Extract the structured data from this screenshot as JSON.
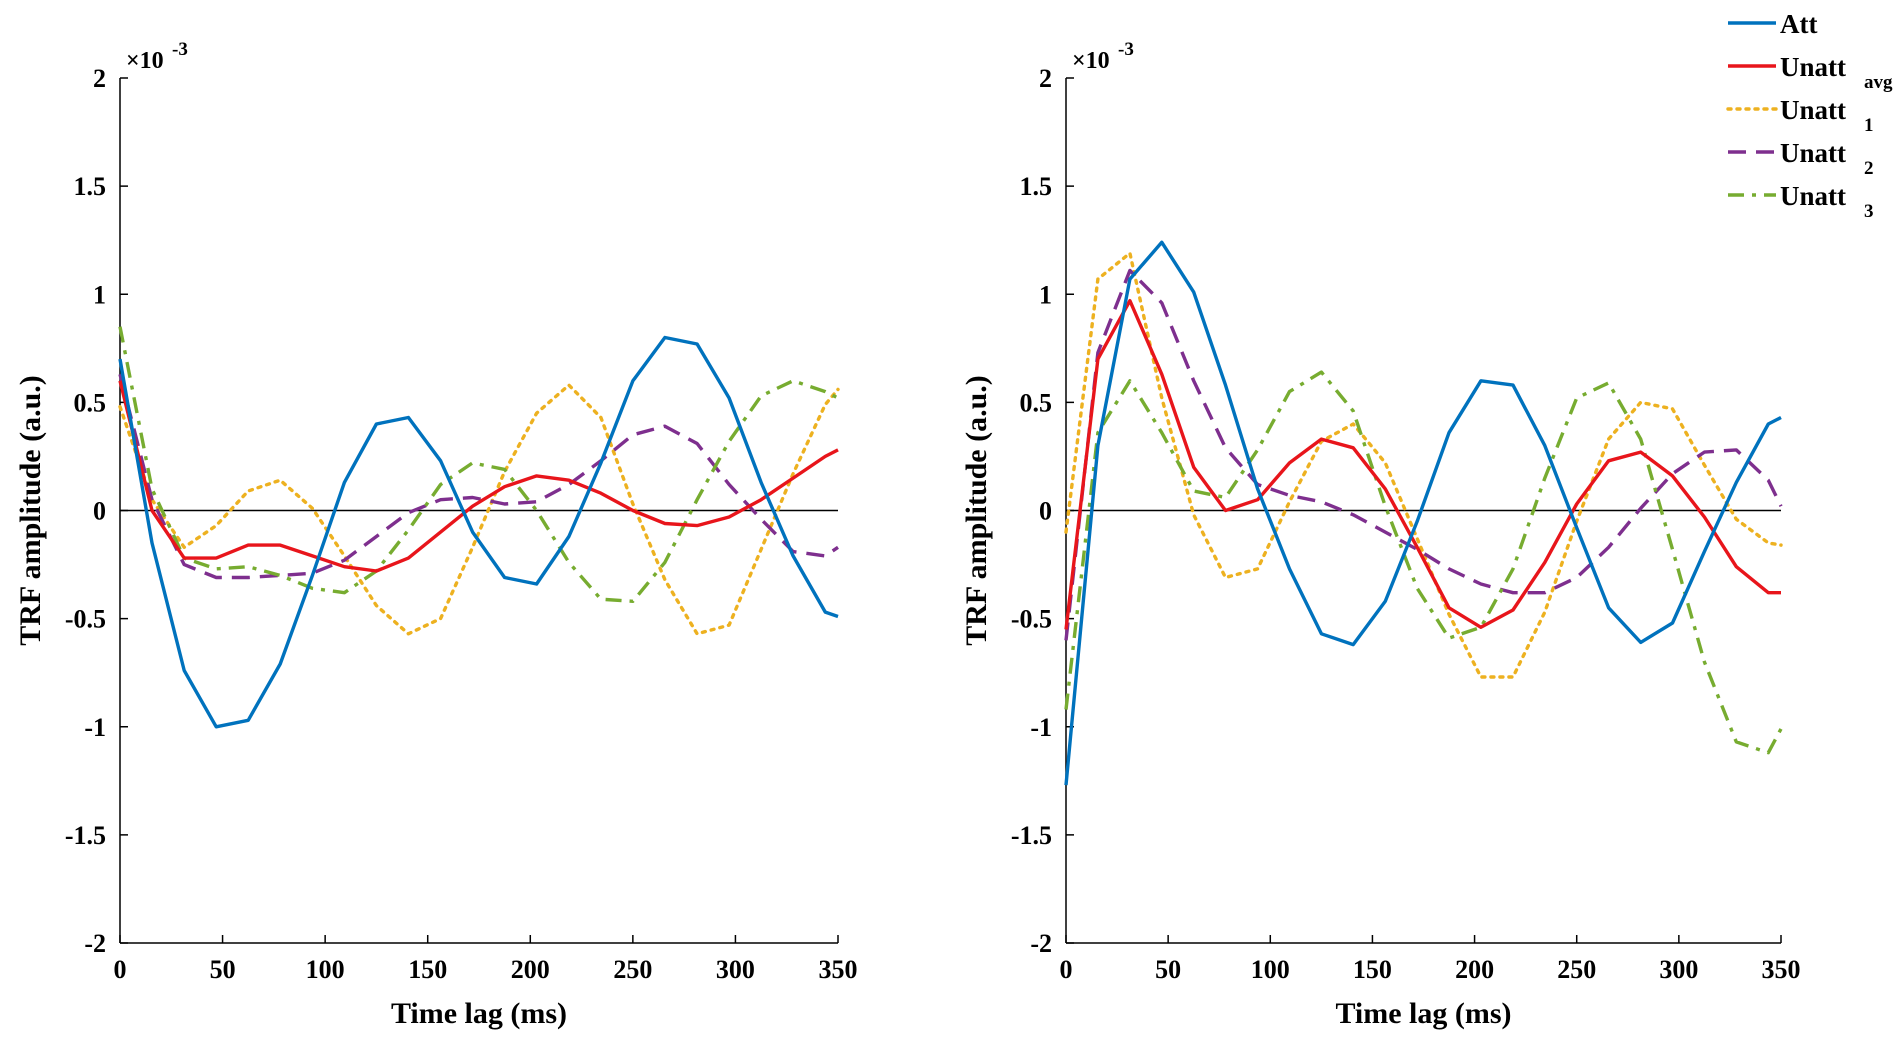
{
  "chart_data": [
    {
      "type": "line",
      "panel": "left",
      "title": "",
      "xlabel": "Time lag (ms)",
      "ylabel": "TRF amplitude (a.u.)",
      "y_scale_label": "×10",
      "y_scale_exponent": "-3",
      "xlim": [
        0,
        350
      ],
      "ylim": [
        -2,
        2
      ],
      "x_ticks": [
        0,
        50,
        100,
        150,
        200,
        250,
        300,
        350
      ],
      "x_tick_labels": [
        "0",
        "50",
        "100",
        "150",
        "200",
        "250",
        "300",
        "350"
      ],
      "y_ticks": [
        -2,
        -1.5,
        -1,
        -0.5,
        0,
        0.5,
        1,
        1.5,
        2
      ],
      "y_tick_labels": [
        "-2",
        "-1.5",
        "-1",
        "-0.5",
        "0",
        "0.5",
        "1",
        "1.5",
        "2"
      ],
      "x": [
        0,
        15.6,
        31.3,
        46.9,
        62.5,
        78.1,
        93.8,
        109.4,
        125,
        140.6,
        156.3,
        171.9,
        187.5,
        203.1,
        218.8,
        234.4,
        250,
        265.6,
        281.3,
        296.9,
        312.5,
        328.1,
        343.8,
        350
      ],
      "series": [
        {
          "key": "att",
          "name": "Att",
          "values": [
            0.7,
            -0.15,
            -0.74,
            -1.0,
            -0.97,
            -0.71,
            -0.3,
            0.13,
            0.4,
            0.43,
            0.23,
            -0.1,
            -0.31,
            -0.34,
            -0.12,
            0.22,
            0.6,
            0.8,
            0.77,
            0.52,
            0.13,
            -0.21,
            -0.47,
            -0.49
          ]
        },
        {
          "key": "unatt_avg",
          "name": "Unatt",
          "values": [
            0.6,
            0.0,
            -0.22,
            -0.22,
            -0.16,
            -0.16,
            -0.21,
            -0.26,
            -0.28,
            -0.22,
            -0.1,
            0.02,
            0.11,
            0.16,
            0.14,
            0.08,
            0.0,
            -0.06,
            -0.07,
            -0.03,
            0.05,
            0.15,
            0.25,
            0.28
          ]
        },
        {
          "key": "unatt1",
          "name": "Unatt",
          "values": [
            0.48,
            0.05,
            -0.17,
            -0.07,
            0.09,
            0.14,
            0.01,
            -0.21,
            -0.44,
            -0.57,
            -0.5,
            -0.17,
            0.18,
            0.45,
            0.58,
            0.43,
            0.03,
            -0.32,
            -0.57,
            -0.53,
            -0.18,
            0.17,
            0.49,
            0.56
          ]
        },
        {
          "key": "unatt2",
          "name": "Unatt",
          "values": [
            0.63,
            0.05,
            -0.25,
            -0.31,
            -0.31,
            -0.3,
            -0.29,
            -0.23,
            -0.12,
            -0.01,
            0.05,
            0.06,
            0.03,
            0.04,
            0.12,
            0.23,
            0.35,
            0.39,
            0.31,
            0.12,
            -0.04,
            -0.19,
            -0.21,
            -0.17
          ]
        },
        {
          "key": "unatt3",
          "name": "Unatt",
          "values": [
            0.85,
            0.1,
            -0.22,
            -0.27,
            -0.26,
            -0.3,
            -0.36,
            -0.38,
            -0.28,
            -0.09,
            0.12,
            0.22,
            0.19,
            0.0,
            -0.24,
            -0.41,
            -0.42,
            -0.24,
            0.05,
            0.32,
            0.53,
            0.6,
            0.55,
            0.52
          ]
        }
      ]
    },
    {
      "type": "line",
      "panel": "right",
      "title": "",
      "xlabel": "Time lag (ms)",
      "ylabel": "TRF amplitude (a.u.)",
      "y_scale_label": "×10",
      "y_scale_exponent": "-3",
      "xlim": [
        0,
        350
      ],
      "ylim": [
        -2,
        2
      ],
      "x_ticks": [
        0,
        50,
        100,
        150,
        200,
        250,
        300,
        350
      ],
      "x_tick_labels": [
        "0",
        "50",
        "100",
        "150",
        "200",
        "250",
        "300",
        "350"
      ],
      "y_ticks": [
        -2,
        -1.5,
        -1,
        -0.5,
        0,
        0.5,
        1,
        1.5,
        2
      ],
      "y_tick_labels": [
        "-2",
        "-1.5",
        "-1",
        "-0.5",
        "0",
        "0.5",
        "1",
        "1.5",
        "2"
      ],
      "x": [
        0,
        15.6,
        31.3,
        46.9,
        62.5,
        78.1,
        93.8,
        109.4,
        125,
        140.6,
        156.3,
        171.9,
        187.5,
        203.1,
        218.8,
        234.4,
        250,
        265.6,
        281.3,
        296.9,
        312.5,
        328.1,
        343.8,
        350
      ],
      "series": [
        {
          "key": "att",
          "name": "Att",
          "values": [
            -1.27,
            0.3,
            1.07,
            1.24,
            1.01,
            0.58,
            0.1,
            -0.27,
            -0.57,
            -0.62,
            -0.42,
            -0.05,
            0.36,
            0.6,
            0.58,
            0.3,
            -0.08,
            -0.45,
            -0.61,
            -0.52,
            -0.19,
            0.13,
            0.4,
            0.43
          ]
        },
        {
          "key": "unatt_avg",
          "name": "Unatt",
          "values": [
            -0.55,
            0.7,
            0.97,
            0.63,
            0.2,
            0.0,
            0.05,
            0.22,
            0.33,
            0.29,
            0.1,
            -0.17,
            -0.45,
            -0.54,
            -0.46,
            -0.24,
            0.03,
            0.23,
            0.27,
            0.16,
            -0.03,
            -0.26,
            -0.38,
            -0.38
          ]
        },
        {
          "key": "unatt1",
          "name": "Unatt",
          "values": [
            -0.1,
            1.07,
            1.19,
            0.52,
            -0.02,
            -0.31,
            -0.27,
            0.04,
            0.32,
            0.4,
            0.22,
            -0.13,
            -0.48,
            -0.77,
            -0.77,
            -0.47,
            -0.05,
            0.33,
            0.5,
            0.47,
            0.21,
            -0.04,
            -0.15,
            -0.16
          ]
        },
        {
          "key": "unatt2",
          "name": "Unatt",
          "values": [
            -0.6,
            0.73,
            1.11,
            0.96,
            0.6,
            0.29,
            0.12,
            0.07,
            0.04,
            -0.02,
            -0.1,
            -0.18,
            -0.27,
            -0.34,
            -0.38,
            -0.38,
            -0.31,
            -0.17,
            0.01,
            0.17,
            0.27,
            0.28,
            0.14,
            0.02
          ]
        },
        {
          "key": "unatt3",
          "name": "Unatt",
          "values": [
            -0.92,
            0.36,
            0.6,
            0.36,
            0.09,
            0.06,
            0.28,
            0.55,
            0.64,
            0.46,
            0.02,
            -0.36,
            -0.59,
            -0.54,
            -0.27,
            0.15,
            0.52,
            0.59,
            0.33,
            -0.18,
            -0.7,
            -1.07,
            -1.12,
            -1.01
          ]
        }
      ]
    }
  ],
  "legend": {
    "placement": "top-right",
    "entries": [
      {
        "key": "att",
        "label": "Att",
        "subscript": "",
        "color": "#0072BD",
        "dash": "solid"
      },
      {
        "key": "unatt_avg",
        "label": "Unatt",
        "subscript": "avg",
        "color": "#E8151B",
        "dash": "solid"
      },
      {
        "key": "unatt1",
        "label": "Unatt",
        "subscript": "1",
        "color": "#EDB120",
        "dash": "dotted"
      },
      {
        "key": "unatt2",
        "label": "Unatt",
        "subscript": "2",
        "color": "#7E2F8E",
        "dash": "dashed"
      },
      {
        "key": "unatt3",
        "label": "Unatt",
        "subscript": "3",
        "color": "#77AC30",
        "dash": "dashdot"
      }
    ]
  }
}
